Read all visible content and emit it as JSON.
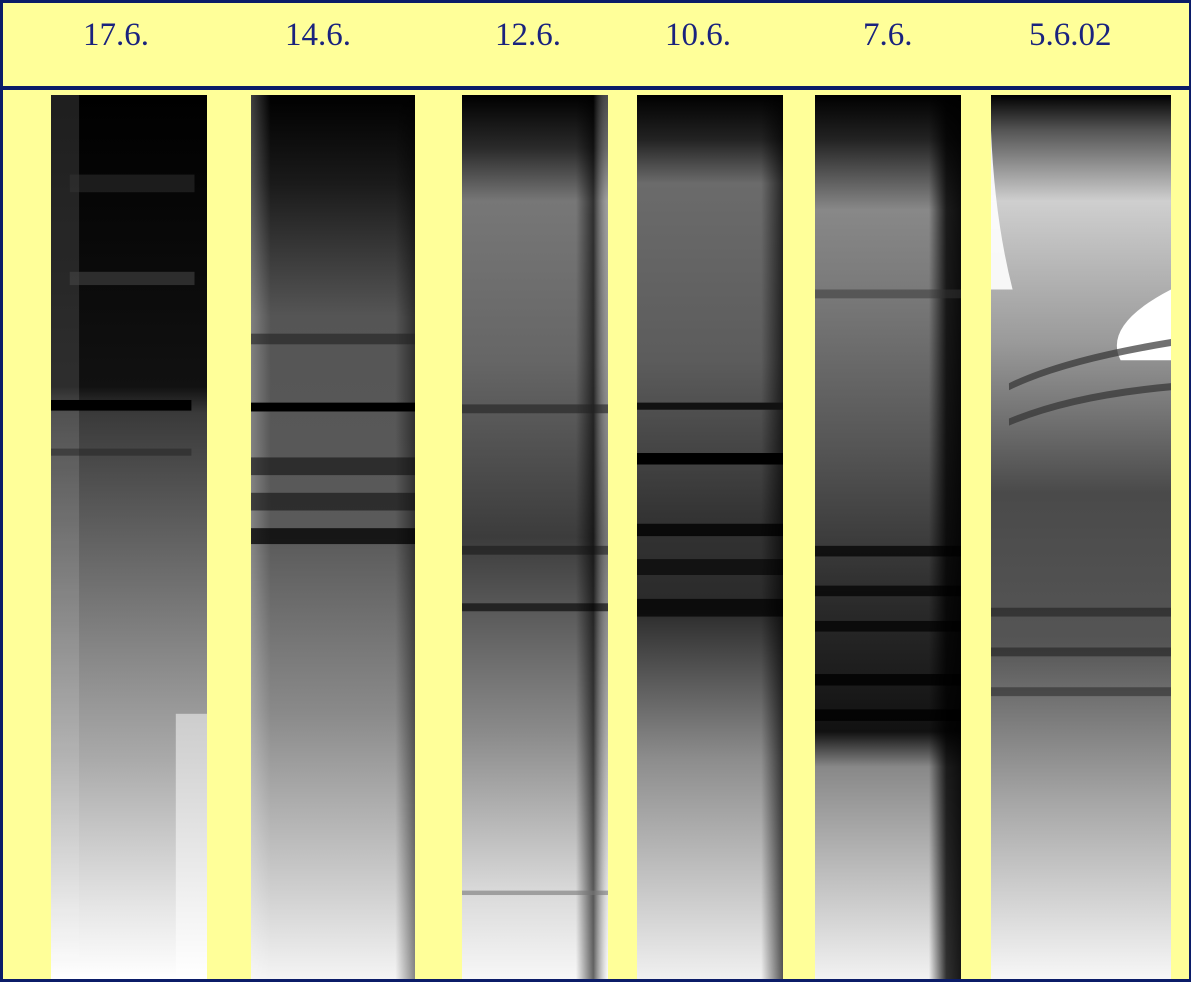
{
  "lanes": [
    {
      "label": "17.6."
    },
    {
      "label": "14.6."
    },
    {
      "label": "12.6."
    },
    {
      "label": "10.6."
    },
    {
      "label": "7.6."
    },
    {
      "label": "5.6.02"
    }
  ],
  "colors": {
    "background": "#ffff99",
    "border": "#0b1c68",
    "label_text": "#1a237e",
    "band": "#000000"
  }
}
